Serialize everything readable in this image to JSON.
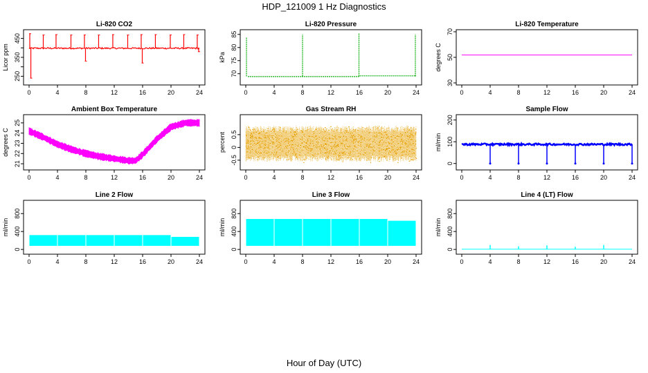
{
  "page": {
    "title": "HDP_121009  1 Hz Diagnostics",
    "x_caption": "Hour of Day (UTC)"
  },
  "chart_data": [
    {
      "type": "line",
      "title": "Li-820 CO2",
      "ylabel": "Licor ppm",
      "xlim": [
        0,
        24
      ],
      "ylim": [
        215,
        485
      ],
      "xticks": [
        0,
        4,
        8,
        12,
        16,
        20,
        24
      ],
      "yticks": [
        250,
        300,
        350,
        400,
        450
      ],
      "ytick_labels": [
        "250",
        "",
        "350",
        "",
        "450"
      ],
      "color": "#ff0000",
      "series": [
        {
          "baseline": 398,
          "noise": 4,
          "spikes": [
            [
              0.1,
              475
            ],
            [
              0.25,
              240
            ],
            [
              2,
              468
            ],
            [
              3.8,
              470
            ],
            [
              5.9,
              468
            ],
            [
              7.8,
              468
            ],
            [
              7.95,
              330
            ],
            [
              9.8,
              468
            ],
            [
              11.8,
              470
            ],
            [
              13.9,
              468
            ],
            [
              15.8,
              470
            ],
            [
              15.95,
              320
            ],
            [
              17.8,
              470
            ],
            [
              19.9,
              468
            ],
            [
              21.8,
              470
            ],
            [
              23.7,
              468
            ],
            [
              23.9,
              380
            ]
          ]
        }
      ]
    },
    {
      "type": "line",
      "title": "Li-820 Pressure",
      "ylabel": "kPa",
      "xlim": [
        0,
        24
      ],
      "ylim": [
        66.5,
        86
      ],
      "xticks": [
        0,
        4,
        8,
        12,
        16,
        20,
        24
      ],
      "yticks": [
        70,
        75,
        80,
        85
      ],
      "ytick_labels": [
        "70",
        "75",
        "80",
        "85"
      ],
      "color": "#00aa00",
      "series": [
        {
          "segments": [
            [
              0.3,
              68.9
            ],
            [
              15.9,
              68.9
            ],
            [
              16.0,
              69.2
            ],
            [
              24,
              69.2
            ]
          ],
          "spikes": [
            [
              0.1,
              84
            ],
            [
              8.0,
              85
            ],
            [
              15.95,
              85.5
            ],
            [
              23.9,
              85
            ]
          ]
        }
      ]
    },
    {
      "type": "line",
      "title": "Li-820 Temperature",
      "ylabel": "degrees C",
      "xlim": [
        0,
        24
      ],
      "ylim": [
        30,
        70
      ],
      "xticks": [
        0,
        4,
        8,
        12,
        16,
        20,
        24
      ],
      "yticks": [
        30,
        50,
        70
      ],
      "ytick_labels": [
        "30",
        "50",
        "70"
      ],
      "color": "#ff00ff",
      "series": [
        {
          "constant": 51.8
        }
      ]
    },
    {
      "type": "area",
      "title": "Ambient Box Temperature",
      "ylabel": "degrees C",
      "xlim": [
        0,
        24
      ],
      "ylim": [
        20.6,
        25.6
      ],
      "xticks": [
        0,
        4,
        8,
        12,
        16,
        20,
        24
      ],
      "yticks": [
        21,
        22,
        23,
        24,
        25
      ],
      "ytick_labels": [
        "21",
        "22",
        "23",
        "24",
        "25"
      ],
      "color": "#ff00ff",
      "series": [
        {
          "center": [
            [
              0,
              24.2
            ],
            [
              2,
              23.6
            ],
            [
              4,
              22.9
            ],
            [
              6,
              22.4
            ],
            [
              8,
              22.0
            ],
            [
              10,
              21.7
            ],
            [
              12,
              21.5
            ],
            [
              14,
              21.3
            ],
            [
              15,
              21.3
            ],
            [
              16,
              21.9
            ],
            [
              18,
              23.4
            ],
            [
              20,
              24.6
            ],
            [
              22,
              25.0
            ],
            [
              24,
              25.0
            ]
          ],
          "halfwidth": 0.3
        }
      ]
    },
    {
      "type": "scatter",
      "title": "Gas Stream RH",
      "ylabel": "percent",
      "xlim": [
        0,
        24
      ],
      "ylim": [
        -0.8,
        1.2
      ],
      "xticks": [
        0,
        4,
        8,
        12,
        16,
        20,
        24
      ],
      "yticks": [
        -0.5,
        0,
        0.5
      ],
      "ytick_labels": [
        "-0.5",
        "0",
        "0.5"
      ],
      "color": "#e6a000",
      "series": [
        {
          "low": -0.55,
          "high": 0.85,
          "density": "dense"
        }
      ]
    },
    {
      "type": "line",
      "title": "Sample Flow",
      "ylabel": "ml/min",
      "xlim": [
        0,
        24
      ],
      "ylim": [
        -20,
        215
      ],
      "xticks": [
        0,
        4,
        8,
        12,
        16,
        20,
        24
      ],
      "yticks": [
        0,
        100,
        200
      ],
      "ytick_labels": [
        "0",
        "100",
        "200"
      ],
      "color": "#0000ff",
      "series": [
        {
          "baseline": 88,
          "noise": 4,
          "dips": [
            4,
            8,
            12,
            16,
            20,
            24
          ]
        }
      ]
    },
    {
      "type": "area",
      "title": "Line 2 Flow",
      "ylabel": "ml/min",
      "xlim": [
        0,
        24
      ],
      "ylim": [
        -60,
        1050
      ],
      "xticks": [
        0,
        4,
        8,
        12,
        16,
        20,
        24
      ],
      "yticks": [
        0,
        400,
        800
      ],
      "ytick_labels": [
        "0",
        "400",
        "800"
      ],
      "color": "#00ffff",
      "series": [
        {
          "low": 80,
          "high": 320,
          "gaps": [
            4,
            8,
            12,
            16,
            20,
            24
          ],
          "tail_low": 70,
          "tail_high": 280
        }
      ]
    },
    {
      "type": "area",
      "title": "Line 3 Flow",
      "ylabel": "ml/min",
      "xlim": [
        0,
        24
      ],
      "ylim": [
        -60,
        1050
      ],
      "xticks": [
        0,
        4,
        8,
        12,
        16,
        20,
        24
      ],
      "yticks": [
        0,
        400,
        800
      ],
      "ytick_labels": [
        "0",
        "400",
        "800"
      ],
      "color": "#00ffff",
      "series": [
        {
          "low": 80,
          "high": 680,
          "gaps": [
            4,
            8,
            12,
            16,
            20,
            24
          ],
          "tail_low": 80,
          "tail_high": 640
        }
      ]
    },
    {
      "type": "line",
      "title": "Line 4 (LT) Flow",
      "ylabel": "ml/min",
      "xlim": [
        0,
        24
      ],
      "ylim": [
        -60,
        1050
      ],
      "xticks": [
        0,
        4,
        8,
        12,
        16,
        20,
        24
      ],
      "yticks": [
        0,
        400,
        800
      ],
      "ytick_labels": [
        "0",
        "400",
        "800"
      ],
      "color": "#00ffff",
      "series": [
        {
          "baseline": 5,
          "spikes": [
            [
              4,
              100
            ],
            [
              8,
              70
            ],
            [
              12,
              90
            ],
            [
              16,
              60
            ],
            [
              20,
              100
            ]
          ]
        }
      ]
    }
  ]
}
